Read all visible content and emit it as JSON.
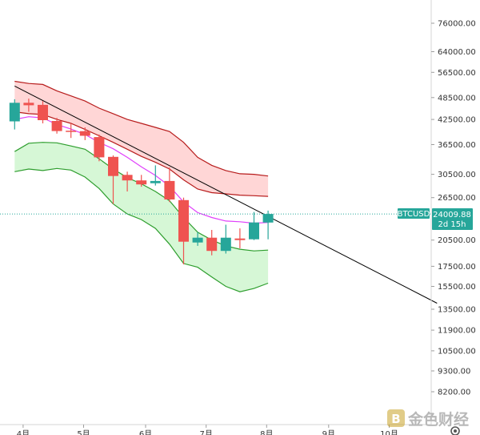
{
  "chart_data": {
    "type": "candlestick",
    "symbol": "BTCUSD",
    "scale": "log",
    "last_price": "24009.88",
    "countdown": "2d 15h",
    "y_ticks": [
      {
        "label": "76000.00",
        "value": 76000
      },
      {
        "label": "64000.00",
        "value": 64000
      },
      {
        "label": "56500.00",
        "value": 56500
      },
      {
        "label": "48500.00",
        "value": 48500
      },
      {
        "label": "42500.00",
        "value": 42500
      },
      {
        "label": "36500.00",
        "value": 36500
      },
      {
        "label": "30500.00",
        "value": 30500
      },
      {
        "label": "26500.00",
        "value": 26500
      },
      {
        "label": "20500.00",
        "value": 20500
      },
      {
        "label": "17500.00",
        "value": 17500
      },
      {
        "label": "15500.00",
        "value": 15500
      },
      {
        "label": "13500.00",
        "value": 13500
      },
      {
        "label": "11900.00",
        "value": 11900
      },
      {
        "label": "10500.00",
        "value": 10500
      },
      {
        "label": "9300.00",
        "value": 9300
      },
      {
        "label": "8200.00",
        "value": 8200
      }
    ],
    "x_ticks": [
      {
        "label": "4月",
        "week": 0.6
      },
      {
        "label": "5月",
        "week": 4.9
      },
      {
        "label": "6月",
        "week": 9.3
      },
      {
        "label": "7月",
        "week": 13.6
      },
      {
        "label": "8月",
        "week": 17.9
      },
      {
        "label": "9月",
        "week": 22.3
      },
      {
        "label": "10月",
        "week": 26.6
      }
    ],
    "candles": [
      {
        "week": 0,
        "open": 42000,
        "high": 48000,
        "low": 40000,
        "close": 47000
      },
      {
        "week": 1,
        "open": 47000,
        "high": 48200,
        "low": 44500,
        "close": 46300
      },
      {
        "week": 2,
        "open": 46400,
        "high": 47500,
        "low": 41500,
        "close": 42300
      },
      {
        "week": 3,
        "open": 42100,
        "high": 42900,
        "low": 39000,
        "close": 39600
      },
      {
        "week": 4,
        "open": 39700,
        "high": 41500,
        "low": 38000,
        "close": 39500
      },
      {
        "week": 5,
        "open": 39600,
        "high": 40500,
        "low": 37500,
        "close": 38500
      },
      {
        "week": 6,
        "open": 38200,
        "high": 38800,
        "low": 33000,
        "close": 33800
      },
      {
        "week": 7,
        "open": 33900,
        "high": 34200,
        "low": 25500,
        "close": 30200
      },
      {
        "week": 8,
        "open": 30400,
        "high": 31000,
        "low": 27500,
        "close": 29400
      },
      {
        "week": 9,
        "open": 29400,
        "high": 30400,
        "low": 28300,
        "close": 28700
      },
      {
        "week": 10,
        "open": 28900,
        "high": 32200,
        "low": 28500,
        "close": 29300
      },
      {
        "week": 11,
        "open": 29300,
        "high": 31800,
        "low": 25800,
        "close": 26200
      },
      {
        "week": 12,
        "open": 26100,
        "high": 26500,
        "low": 17700,
        "close": 20300
      },
      {
        "week": 13,
        "open": 20200,
        "high": 21500,
        "low": 19800,
        "close": 20800
      },
      {
        "week": 14,
        "open": 20800,
        "high": 21800,
        "low": 18700,
        "close": 19200
      },
      {
        "week": 15,
        "open": 19200,
        "high": 22500,
        "low": 18900,
        "close": 20800
      },
      {
        "week": 16,
        "open": 20700,
        "high": 22000,
        "low": 19500,
        "close": 20500
      },
      {
        "week": 17,
        "open": 20600,
        "high": 24300,
        "low": 20500,
        "close": 22800
      },
      {
        "week": 18,
        "open": 22800,
        "high": 24500,
        "low": 20600,
        "close": 24009.88
      }
    ],
    "indicators": {
      "upper_band_top": [
        53500,
        52800,
        52500,
        50500,
        49000,
        47500,
        45500,
        44000,
        42500,
        41500,
        40500,
        39500,
        37000,
        33800,
        32200,
        31200,
        30600,
        30500,
        30200
      ],
      "upper_band_bottom": [
        44500,
        44000,
        43800,
        42500,
        41500,
        40000,
        38500,
        37000,
        35500,
        34000,
        32800,
        31500,
        29500,
        27900,
        27300,
        27100,
        26900,
        26800,
        26700
      ],
      "middle_line": [
        42500,
        43200,
        42900,
        41200,
        40100,
        38800,
        37000,
        35600,
        33800,
        31900,
        30300,
        28400,
        25800,
        24200,
        23500,
        23000,
        22900,
        22700,
        22800
      ],
      "lower_band_top": [
        35000,
        36800,
        37000,
        36900,
        36200,
        35500,
        33500,
        31500,
        29900,
        28800,
        27500,
        26000,
        23500,
        21500,
        20500,
        19800,
        19400,
        19200,
        19300
      ],
      "lower_band_bottom": [
        31000,
        31500,
        31200,
        31600,
        31300,
        30000,
        28000,
        25500,
        24000,
        23200,
        22000,
        20000,
        17800,
        17400,
        16400,
        15500,
        15000,
        15300,
        15800
      ],
      "trend_line": {
        "start": {
          "week": 0,
          "value": 52000
        },
        "end": {
          "week": 30,
          "value": 14000
        }
      }
    },
    "colors": {
      "up": "#26a69a",
      "down": "#ef5350",
      "upper_fill": "#ffd6d6",
      "upper_line": "#b71c1c",
      "lower_fill": "#d6f7d6",
      "lower_line": "#2e9e2e",
      "middle_line": "#e040fb",
      "trend_line": "#000000",
      "price_line": "#26a69a",
      "tag_bg": "#26a69a"
    },
    "watermark": "金色财经"
  }
}
